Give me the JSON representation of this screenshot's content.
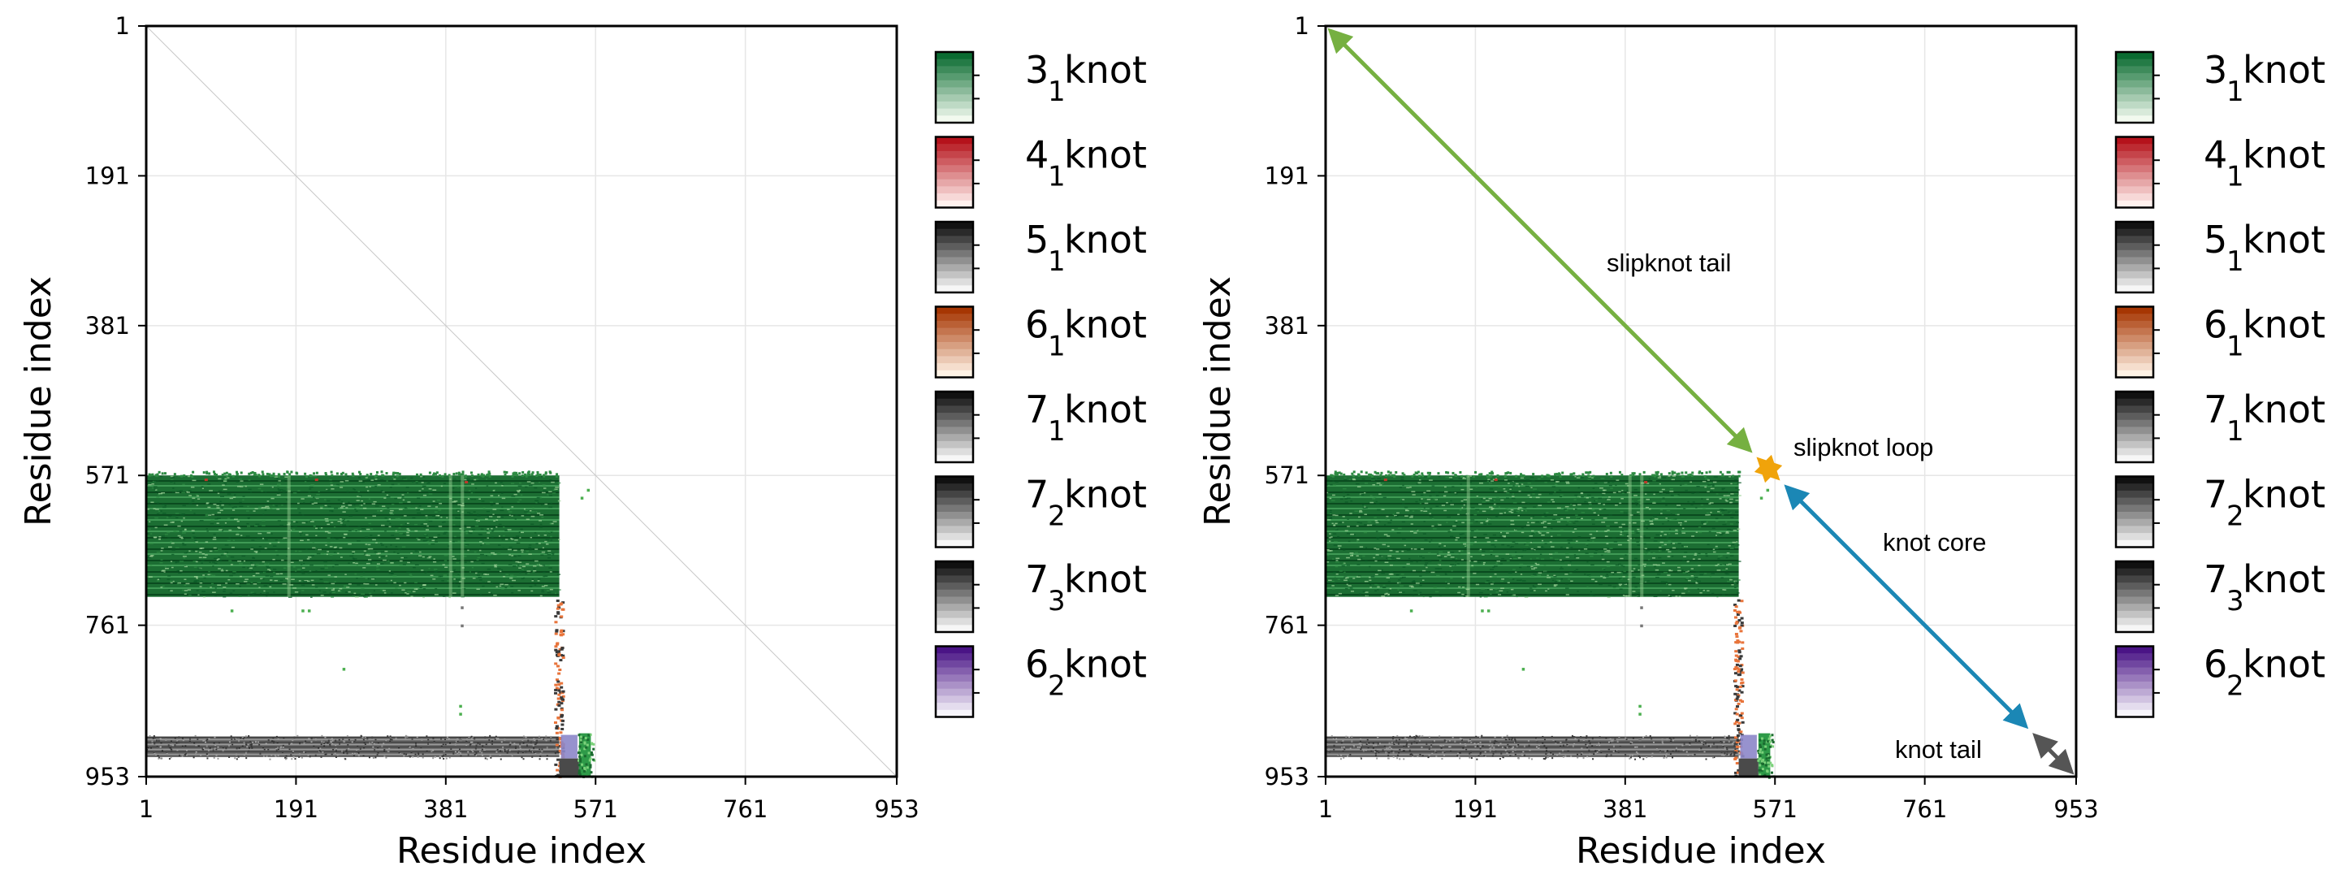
{
  "chart_data": [
    {
      "type": "heatmap",
      "panel": "left",
      "xlabel": "Residue index",
      "ylabel": "Residue index",
      "xticks": [
        "1",
        "191",
        "381",
        "571",
        "761",
        "953"
      ],
      "yticks": [
        "1",
        "191",
        "381",
        "571",
        "761",
        "953"
      ],
      "xlim": [
        1,
        953
      ],
      "ylim": [
        1,
        953
      ],
      "grid": true,
      "regions": [
        {
          "knot": "3_1",
          "x": [
            1,
            525
          ],
          "y": [
            571,
            725
          ],
          "density": "high"
        },
        {
          "knot": "5_1",
          "x": [
            1,
            525
          ],
          "y": [
            900,
            930
          ],
          "density": "medium"
        },
        {
          "knot": "6_1",
          "x": [
            518,
            528
          ],
          "y": [
            725,
            900
          ],
          "density": "low"
        },
        {
          "knot": "7_1",
          "x": [
            518,
            528
          ],
          "y": [
            725,
            953
          ],
          "density": "low"
        },
        {
          "knot": "6_2",
          "x": [
            525,
            550
          ],
          "y": [
            900,
            930
          ],
          "density": "medium"
        },
        {
          "knot": "3_1",
          "x": [
            550,
            565
          ],
          "y": [
            900,
            953
          ],
          "density": "medium"
        }
      ]
    },
    {
      "type": "heatmap",
      "panel": "right",
      "xlabel": "Residue index",
      "ylabel": "Residue index",
      "xticks": [
        "1",
        "191",
        "381",
        "571",
        "761",
        "953"
      ],
      "yticks": [
        "1",
        "191",
        "381",
        "571",
        "761",
        "953"
      ],
      "xlim": [
        1,
        953
      ],
      "ylim": [
        1,
        953
      ],
      "grid": true,
      "annotations": [
        {
          "label": "slipknot tail",
          "from": [
            1,
            1
          ],
          "to": [
            545,
            545
          ],
          "color": "#76b041"
        },
        {
          "label": "slipknot loop",
          "from": [
            545,
            545
          ],
          "to": [
            580,
            580
          ],
          "color": "#f0a30a"
        },
        {
          "label": "knot core",
          "from": [
            580,
            580
          ],
          "to": [
            895,
            895
          ],
          "color": "#1b87b5"
        },
        {
          "label": "knot tail",
          "from": [
            895,
            895
          ],
          "to": [
            953,
            953
          ],
          "color": "#555555"
        }
      ]
    }
  ],
  "legend": [
    {
      "base": "3",
      "sub": "1",
      "suffix": "knot",
      "colormap": "Greens",
      "top": "#0a6b31",
      "bottom": "#f2faef"
    },
    {
      "base": "4",
      "sub": "1",
      "suffix": "knot",
      "colormap": "Reds",
      "top": "#b5121b",
      "bottom": "#fff1ee"
    },
    {
      "base": "5",
      "sub": "1",
      "suffix": "knot",
      "colormap": "Greys",
      "top": "#111111",
      "bottom": "#f6f6f6"
    },
    {
      "base": "6",
      "sub": "1",
      "suffix": "knot",
      "colormap": "Oranges",
      "top": "#a63603",
      "bottom": "#fff3e6"
    },
    {
      "base": "7",
      "sub": "1",
      "suffix": "knot",
      "colormap": "Greys",
      "top": "#111111",
      "bottom": "#f6f6f6"
    },
    {
      "base": "7",
      "sub": "2",
      "suffix": "knot",
      "colormap": "Greys",
      "top": "#111111",
      "bottom": "#f6f6f6"
    },
    {
      "base": "7",
      "sub": "3",
      "suffix": "knot",
      "colormap": "Greys",
      "top": "#111111",
      "bottom": "#f6f6f6"
    },
    {
      "base": "6",
      "sub": "2",
      "suffix": "knot",
      "colormap": "Purples",
      "top": "#4a1486",
      "bottom": "#f7f5fb"
    }
  ],
  "colors": {
    "green_dark": "#0b5a27",
    "green_mid": "#2e8b43",
    "green_light": "#9fd49a",
    "grey_dark": "#3a3a3a",
    "grey_light": "#9a9a9a",
    "orange": "#e8743b",
    "purple": "#8c86c9",
    "grid": "#e6e6e6"
  }
}
